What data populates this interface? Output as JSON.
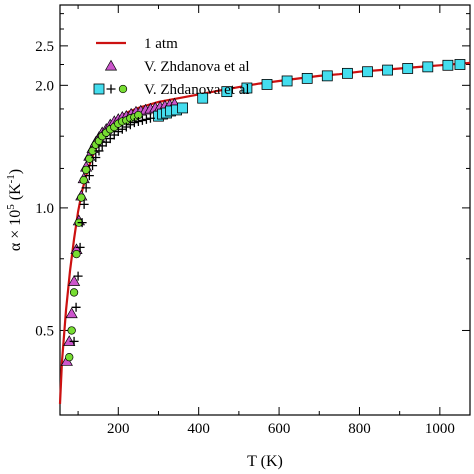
{
  "chart_data": {
    "type": "scatter",
    "xlabel": "T (K)",
    "ylabel": "α × 10",
    "ylabel_sup": "5",
    "ylabel_unit": " (K",
    "ylabel_unit_sup": "-1",
    "ylabel_close": ")",
    "x_range": [
      55,
      1075
    ],
    "y_range": [
      0.31,
      3.15
    ],
    "x_ticks": [
      200,
      400,
      600,
      800,
      1000
    ],
    "x_tick_labels": [
      "200",
      "400",
      "600",
      "800",
      "1000"
    ],
    "x_minor_ticks": [
      100,
      300,
      500,
      700,
      900
    ],
    "y_ticks": [
      0.5,
      1.0,
      2.0,
      2.5
    ],
    "y_tick_labels": [
      "0.5",
      "1.0",
      "2.0",
      "2.5"
    ],
    "y_minor_ticks": [
      0.75,
      1.25,
      1.5,
      1.75,
      2.25,
      2.75,
      3.0
    ],
    "grid": false,
    "legend_position": "top-left",
    "colors": {
      "line": "#cc1111",
      "triangle": "#cc55cc",
      "square": "#44ddee",
      "circle": "#77dd33",
      "plus": "#000000"
    },
    "series": [
      {
        "name": "1 atm",
        "kind": "line",
        "x": [
          55,
          60,
          70,
          80,
          90,
          100,
          110,
          120,
          130,
          140,
          150,
          160,
          180,
          200,
          225,
          250,
          275,
          300,
          325,
          350,
          400,
          450,
          500,
          550,
          600,
          650,
          700,
          750,
          800,
          850,
          900,
          950,
          1000,
          1050,
          1075
        ],
        "y": [
          0.33,
          0.42,
          0.56,
          0.7,
          0.84,
          0.98,
          1.1,
          1.2,
          1.29,
          1.37,
          1.44,
          1.5,
          1.59,
          1.66,
          1.72,
          1.76,
          1.79,
          1.82,
          1.84,
          1.86,
          1.9,
          1.94,
          1.98,
          2.02,
          2.05,
          2.08,
          2.11,
          2.13,
          2.16,
          2.18,
          2.2,
          2.22,
          2.24,
          2.26,
          2.27
        ]
      },
      {
        "name": "V. Zhdanova et al",
        "kind": "triangle",
        "x": [
          72,
          78,
          84,
          90,
          96,
          102,
          108,
          114,
          120,
          128,
          136,
          144,
          152,
          160,
          170,
          180,
          190,
          200,
          210,
          220,
          232,
          244,
          256,
          268,
          280,
          292,
          304,
          316,
          328,
          340
        ],
        "y": [
          0.42,
          0.47,
          0.55,
          0.66,
          0.79,
          0.93,
          1.07,
          1.18,
          1.26,
          1.34,
          1.4,
          1.45,
          1.49,
          1.53,
          1.56,
          1.6,
          1.63,
          1.65,
          1.67,
          1.68,
          1.7,
          1.72,
          1.73,
          1.74,
          1.75,
          1.76,
          1.77,
          1.78,
          1.79,
          1.8
        ]
      },
      {
        "name": "V. Zhdanova et al",
        "kind": "square",
        "x": [
          300,
          310,
          320,
          330,
          345,
          360,
          410,
          470,
          520,
          570,
          620,
          670,
          720,
          770,
          820,
          870,
          920,
          970,
          1020,
          1050
        ],
        "y": [
          1.68,
          1.7,
          1.71,
          1.73,
          1.74,
          1.76,
          1.86,
          1.93,
          1.97,
          2.01,
          2.05,
          2.08,
          2.11,
          2.14,
          2.16,
          2.18,
          2.2,
          2.22,
          2.24,
          2.25
        ]
      },
      {
        "name": "",
        "kind": "circle",
        "x": [
          78,
          84,
          90,
          96,
          102,
          108,
          114,
          120,
          128,
          136,
          144,
          152,
          160,
          170,
          180,
          190,
          200,
          210,
          220,
          230,
          240,
          250
        ],
        "y": [
          0.43,
          0.5,
          0.62,
          0.77,
          0.92,
          1.06,
          1.17,
          1.24,
          1.32,
          1.38,
          1.43,
          1.46,
          1.5,
          1.53,
          1.56,
          1.58,
          1.61,
          1.63,
          1.64,
          1.66,
          1.67,
          1.69
        ]
      },
      {
        "name": "",
        "kind": "plus",
        "x": [
          90,
          95,
          100,
          105,
          110,
          115,
          120,
          128,
          136,
          144,
          152,
          160,
          170,
          180,
          190,
          200,
          210,
          220,
          230,
          240,
          250,
          260,
          270,
          280
        ],
        "y": [
          0.47,
          0.57,
          0.68,
          0.8,
          0.92,
          1.02,
          1.12,
          1.2,
          1.27,
          1.33,
          1.38,
          1.42,
          1.45,
          1.48,
          1.51,
          1.54,
          1.56,
          1.58,
          1.6,
          1.62,
          1.63,
          1.64,
          1.65,
          1.66
        ]
      }
    ],
    "legend": [
      {
        "label": "1 atm",
        "markers": [
          "line"
        ]
      },
      {
        "label": "V. Zhdanova et al",
        "markers": [
          "triangle"
        ]
      },
      {
        "label": "V. Zhdanova et al",
        "markers": [
          "square",
          "plus",
          "circle"
        ]
      }
    ]
  }
}
